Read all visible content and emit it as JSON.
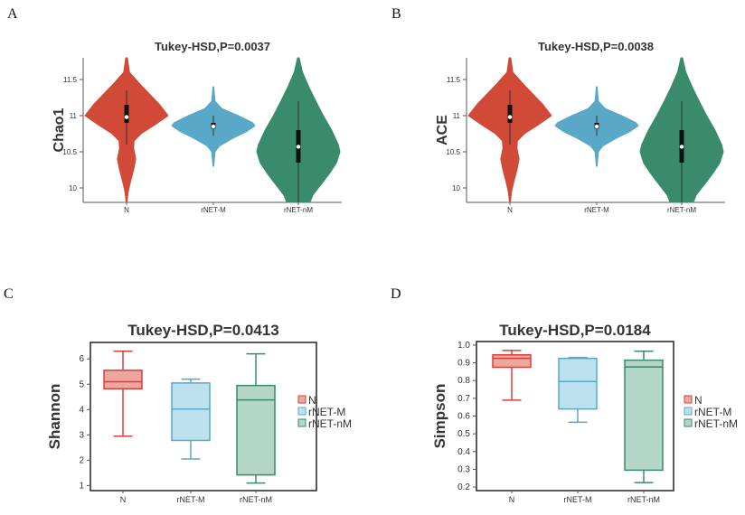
{
  "chart_data": [
    {
      "panel": "A",
      "type": "violin",
      "title": "Tukey-HSD,P=0.0037",
      "ylabel": "Chao1",
      "xlabel": "",
      "ylim": [
        9.8,
        11.8
      ],
      "yticks": [
        10,
        10.5,
        11,
        11.5
      ],
      "ytick_labels": [
        "10",
        "10.5",
        "11",
        "11.5"
      ],
      "categories": [
        "N",
        "rNET-M",
        "rNET-nM"
      ],
      "colors": [
        "#d04a37",
        "#5aa8c8",
        "#3a8a6c"
      ],
      "series": [
        {
          "name": "N",
          "density": [
            [
              11.8,
              0.02
            ],
            [
              11.6,
              0.07
            ],
            [
              11.45,
              0.3
            ],
            [
              11.3,
              0.55
            ],
            [
              11.15,
              0.8
            ],
            [
              11.0,
              1.0
            ],
            [
              10.88,
              0.7
            ],
            [
              10.75,
              0.35
            ],
            [
              10.65,
              0.18
            ],
            [
              10.55,
              0.17
            ],
            [
              10.4,
              0.22
            ],
            [
              10.25,
              0.17
            ],
            [
              10.1,
              0.1
            ],
            [
              9.95,
              0.04
            ],
            [
              9.8,
              0.01
            ]
          ],
          "whisker": [
            10.6,
            11.35
          ],
          "q1": 10.9,
          "q3": 11.15,
          "median": 10.98
        },
        {
          "name": "rNET-M",
          "density": [
            [
              11.4,
              0.01
            ],
            [
              11.2,
              0.04
            ],
            [
              11.1,
              0.2
            ],
            [
              11.0,
              0.6
            ],
            [
              10.9,
              0.95
            ],
            [
              10.86,
              1.0
            ],
            [
              10.78,
              0.8
            ],
            [
              10.68,
              0.45
            ],
            [
              10.58,
              0.15
            ],
            [
              10.5,
              0.04
            ],
            [
              10.3,
              0.01
            ]
          ],
          "whisker": [
            10.72,
            11.0
          ],
          "q1": 10.82,
          "q3": 10.9,
          "median": 10.85
        },
        {
          "name": "rNET-nM",
          "density": [
            [
              11.8,
              0.02
            ],
            [
              11.6,
              0.1
            ],
            [
              11.4,
              0.25
            ],
            [
              11.2,
              0.42
            ],
            [
              11.0,
              0.6
            ],
            [
              10.8,
              0.8
            ],
            [
              10.6,
              0.96
            ],
            [
              10.5,
              1.0
            ],
            [
              10.35,
              0.92
            ],
            [
              10.2,
              0.75
            ],
            [
              10.05,
              0.55
            ],
            [
              9.9,
              0.35
            ],
            [
              9.8,
              0.28
            ]
          ],
          "whisker": [
            9.8,
            11.2
          ],
          "q1": 10.35,
          "q3": 10.8,
          "median": 10.57
        }
      ]
    },
    {
      "panel": "B",
      "type": "violin",
      "title": "Tukey-HSD,P=0.0038",
      "ylabel": "ACE",
      "xlabel": "",
      "ylim": [
        9.8,
        11.8
      ],
      "yticks": [
        10,
        10.5,
        11,
        11.5
      ],
      "ytick_labels": [
        "10",
        "10.5",
        "11",
        "11.5"
      ],
      "categories": [
        "N",
        "rNET-M",
        "rNET-nM"
      ],
      "colors": [
        "#d04a37",
        "#5aa8c8",
        "#3a8a6c"
      ],
      "series": [
        {
          "name": "N",
          "density": [
            [
              11.8,
              0.02
            ],
            [
              11.6,
              0.07
            ],
            [
              11.45,
              0.3
            ],
            [
              11.3,
              0.55
            ],
            [
              11.15,
              0.8
            ],
            [
              11.0,
              1.0
            ],
            [
              10.88,
              0.7
            ],
            [
              10.75,
              0.35
            ],
            [
              10.65,
              0.18
            ],
            [
              10.55,
              0.17
            ],
            [
              10.4,
              0.22
            ],
            [
              10.25,
              0.17
            ],
            [
              10.1,
              0.1
            ],
            [
              9.95,
              0.04
            ],
            [
              9.8,
              0.01
            ]
          ],
          "whisker": [
            10.6,
            11.35
          ],
          "q1": 10.9,
          "q3": 11.15,
          "median": 10.98
        },
        {
          "name": "rNET-M",
          "density": [
            [
              11.4,
              0.01
            ],
            [
              11.2,
              0.04
            ],
            [
              11.1,
              0.2
            ],
            [
              11.0,
              0.6
            ],
            [
              10.9,
              0.95
            ],
            [
              10.86,
              1.0
            ],
            [
              10.78,
              0.8
            ],
            [
              10.68,
              0.45
            ],
            [
              10.58,
              0.15
            ],
            [
              10.5,
              0.04
            ],
            [
              10.3,
              0.01
            ]
          ],
          "whisker": [
            10.72,
            11.0
          ],
          "q1": 10.82,
          "q3": 10.9,
          "median": 10.85
        },
        {
          "name": "rNET-nM",
          "density": [
            [
              11.8,
              0.02
            ],
            [
              11.6,
              0.1
            ],
            [
              11.4,
              0.25
            ],
            [
              11.2,
              0.42
            ],
            [
              11.0,
              0.6
            ],
            [
              10.8,
              0.8
            ],
            [
              10.6,
              0.96
            ],
            [
              10.5,
              1.0
            ],
            [
              10.35,
              0.92
            ],
            [
              10.2,
              0.75
            ],
            [
              10.05,
              0.55
            ],
            [
              9.9,
              0.35
            ],
            [
              9.8,
              0.28
            ]
          ],
          "whisker": [
            9.8,
            11.2
          ],
          "q1": 10.35,
          "q3": 10.8,
          "median": 10.57
        }
      ]
    },
    {
      "panel": "C",
      "type": "box",
      "title": "Tukey-HSD,P=0.0413",
      "ylabel": "Shannon",
      "xlabel": "",
      "ylim": [
        0.8,
        6.65
      ],
      "yticks": [
        1,
        2,
        3,
        4,
        5,
        6
      ],
      "ytick_labels": [
        "1",
        "2",
        "3",
        "4",
        "5",
        "6"
      ],
      "categories": [
        "N",
        "rNET-M",
        "rNET-nM"
      ],
      "legend": [
        "N",
        "rNET-M",
        "rNET-nM"
      ],
      "legend_position": "right",
      "stroke_colors": [
        "#d9403a",
        "#5aa8c8",
        "#3a8a6c"
      ],
      "fill_colors": [
        "#eba89e",
        "#bde0ef",
        "#b3d6c7"
      ],
      "series": [
        {
          "name": "N",
          "min": 2.95,
          "q1": 4.82,
          "median": 5.1,
          "q3": 5.55,
          "max": 6.3
        },
        {
          "name": "rNET-M",
          "min": 2.05,
          "q1": 2.78,
          "median": 4.02,
          "q3": 5.05,
          "max": 5.2
        },
        {
          "name": "rNET-nM",
          "min": 1.1,
          "q1": 1.42,
          "median": 4.38,
          "q3": 4.95,
          "max": 6.2
        }
      ]
    },
    {
      "panel": "D",
      "type": "box",
      "title": "Tukey-HSD,P=0.0184",
      "ylabel": "Simpson",
      "xlabel": "",
      "ylim": [
        0.18,
        1.02
      ],
      "yticks": [
        0.2,
        0.3,
        0.4,
        0.5,
        0.6,
        0.7,
        0.8,
        0.9,
        1.0
      ],
      "ytick_labels": [
        "0.2",
        "0.3",
        "0.4",
        "0.5",
        "0.6",
        "0.7",
        "0.8",
        "0.9",
        "1.0"
      ],
      "categories": [
        "N",
        "rNET-M",
        "rNET-nM"
      ],
      "legend": [
        "N",
        "rNET-M",
        "rNET-nM"
      ],
      "legend_position": "right",
      "stroke_colors": [
        "#d9403a",
        "#5aa8c8",
        "#3a8a6c"
      ],
      "fill_colors": [
        "#eba89e",
        "#bde0ef",
        "#b3d6c7"
      ],
      "series": [
        {
          "name": "N",
          "min": 0.69,
          "q1": 0.875,
          "median": 0.925,
          "q3": 0.945,
          "max": 0.97
        },
        {
          "name": "rNET-M",
          "min": 0.565,
          "q1": 0.64,
          "median": 0.795,
          "q3": 0.925,
          "max": 0.93
        },
        {
          "name": "rNET-nM",
          "min": 0.225,
          "q1": 0.295,
          "median": 0.877,
          "q3": 0.915,
          "max": 0.965
        }
      ]
    }
  ]
}
